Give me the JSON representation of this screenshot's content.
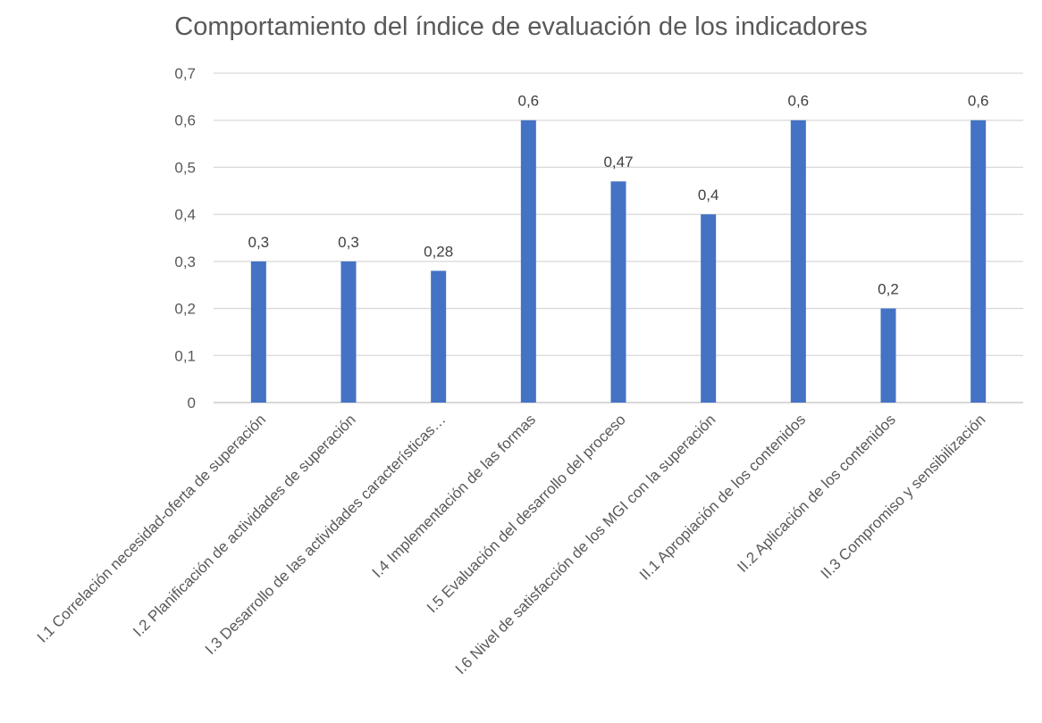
{
  "chart_data": {
    "type": "bar",
    "title": "Comportamiento del índice de evaluación de los indicadores",
    "categories": [
      "I.1 Correlación necesidad-oferta de superación",
      "I.2 Planificación de actividades de superación",
      "I.3 Desarrollo de las actividades características…",
      "I.4 Implementación de las formas",
      "I.5 Evaluación del desarrollo del proceso",
      "I.6 Nivel de satisfacción de los MGI con la superación",
      "II.1 Apropiación de los contenidos",
      "II.2 Aplicación de los contenidos",
      "II.3 Compromiso y sensibilización"
    ],
    "values": [
      0.3,
      0.3,
      0.28,
      0.6,
      0.47,
      0.4,
      0.6,
      0.2,
      0.6
    ],
    "data_labels": [
      "0,3",
      "0,3",
      "0,28",
      "0,6",
      "0,47",
      "0,4",
      "0,6",
      "0,2",
      "0,6"
    ],
    "ylim": [
      0,
      0.7
    ],
    "y_ticks": [
      0,
      0.1,
      0.2,
      0.3,
      0.4,
      0.5,
      0.6,
      0.7
    ],
    "y_tick_labels": [
      "0",
      "0,1",
      "0,2",
      "0,3",
      "0,4",
      "0,5",
      "0,6",
      "0,7"
    ],
    "xlabel": "",
    "ylabel": "",
    "grid": true,
    "legend": "none",
    "bar_color": "#4472C4"
  }
}
